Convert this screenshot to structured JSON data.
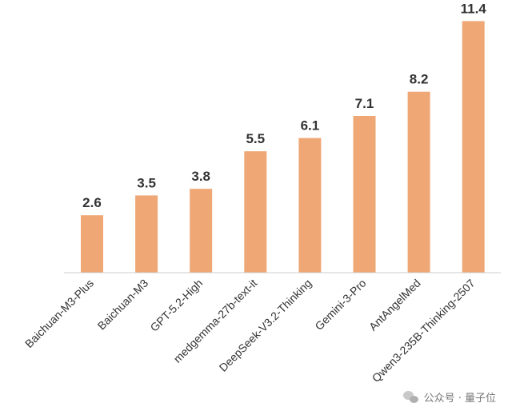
{
  "colors": {
    "bar": "#efa775",
    "axis": "#cccccc",
    "text": "#333333"
  },
  "chart_data": {
    "type": "bar",
    "categories": [
      "Baichuan-M3-Plus",
      "Baichuan-M3",
      "GPT-5.2-High",
      "medgemma-27b-text-it",
      "DeepSeek-V3.2-Thinking",
      "Gemini-3-Pro",
      "AntAngelMed",
      "Qwen3-235B-Thinking-2507"
    ],
    "values": [
      2.6,
      3.5,
      3.8,
      5.5,
      6.1,
      7.1,
      8.2,
      11.4
    ],
    "data_labels": [
      "2.6",
      "3.5",
      "3.8",
      "5.5",
      "6.1",
      "7.1",
      "8.2",
      "11.4"
    ],
    "title": "",
    "xlabel": "",
    "ylabel": "",
    "ylim": [
      0,
      11.4
    ],
    "grid": false,
    "legend": "none"
  },
  "watermark": {
    "text": "公众号 · 量子位"
  }
}
